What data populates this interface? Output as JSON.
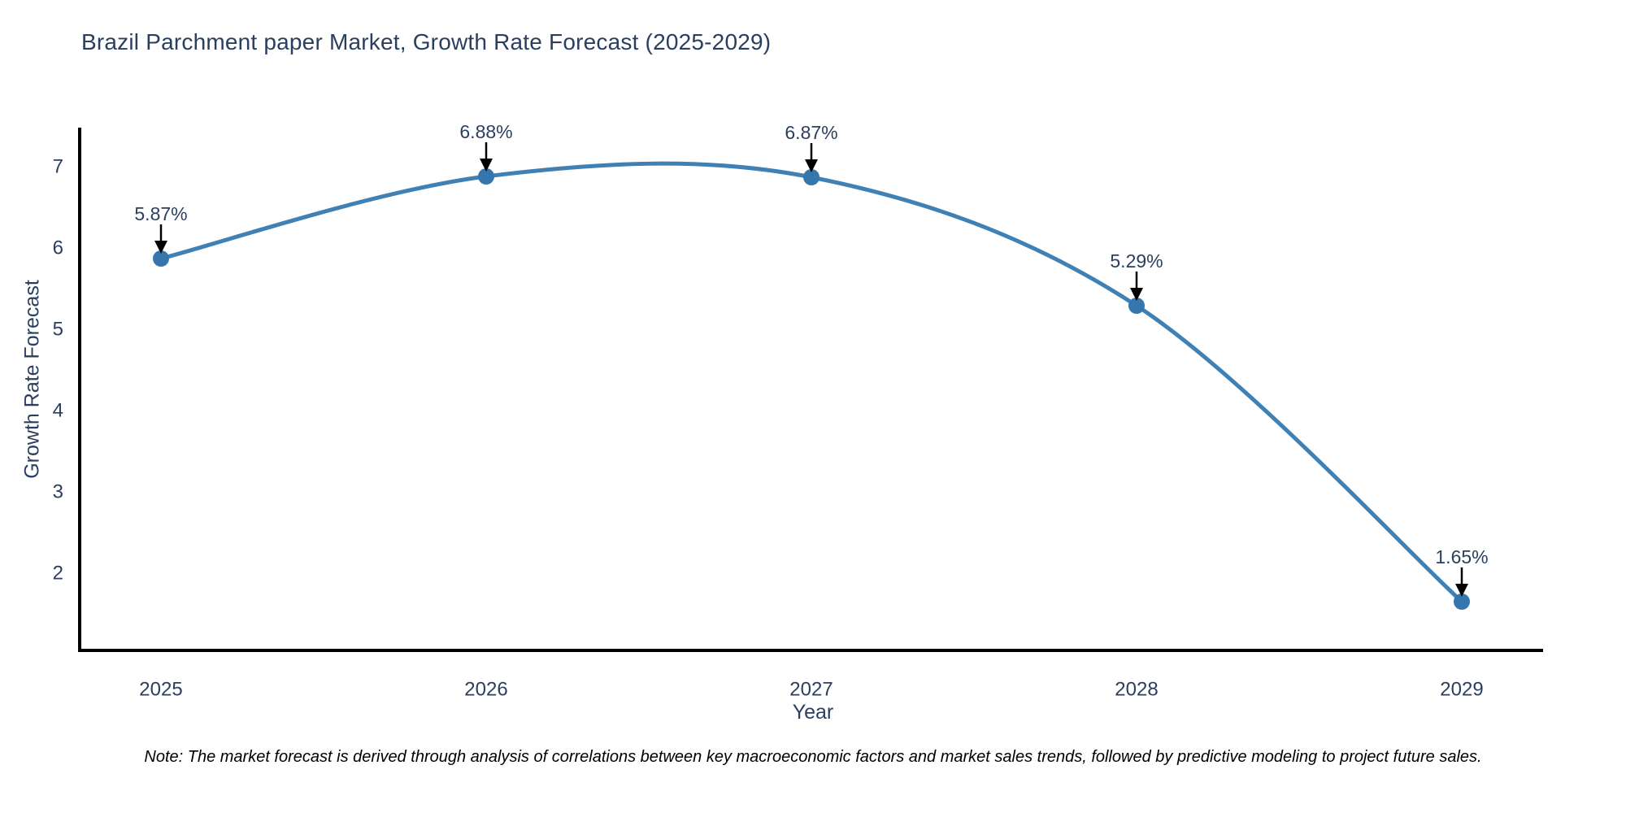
{
  "chart_data": {
    "type": "line",
    "title": "Brazil Parchment paper Market, Growth Rate Forecast (2025-2029)",
    "xlabel": "Year",
    "ylabel": "Growth Rate Forecast",
    "x": [
      2025,
      2026,
      2027,
      2028,
      2029
    ],
    "series": [
      {
        "name": "Growth Rate Forecast",
        "values": [
          5.87,
          6.88,
          6.87,
          5.29,
          1.65
        ],
        "point_labels": [
          "5.87%",
          "6.88%",
          "6.87%",
          "5.29%",
          "1.65%"
        ]
      }
    ],
    "yticks": [
      2,
      3,
      4,
      5,
      6,
      7
    ],
    "xlim": [
      2024.75,
      2029.25
    ],
    "ylim": [
      1.05,
      7.48
    ],
    "grid": false,
    "legend": "none",
    "line_shape": "spline",
    "marker": "circle",
    "annotation_style": "value label above point with downward black arrow",
    "note": "Note: The market forecast is derived through analysis of correlations between key macroeconomic factors and market sales trends, followed by predictive modeling to project future sales.",
    "colors": {
      "line": "#4081b5",
      "marker": "#3577ad",
      "text": "#2a3f5f",
      "axis": "#000000",
      "arrow": "#000000",
      "background": "#ffffff"
    }
  }
}
